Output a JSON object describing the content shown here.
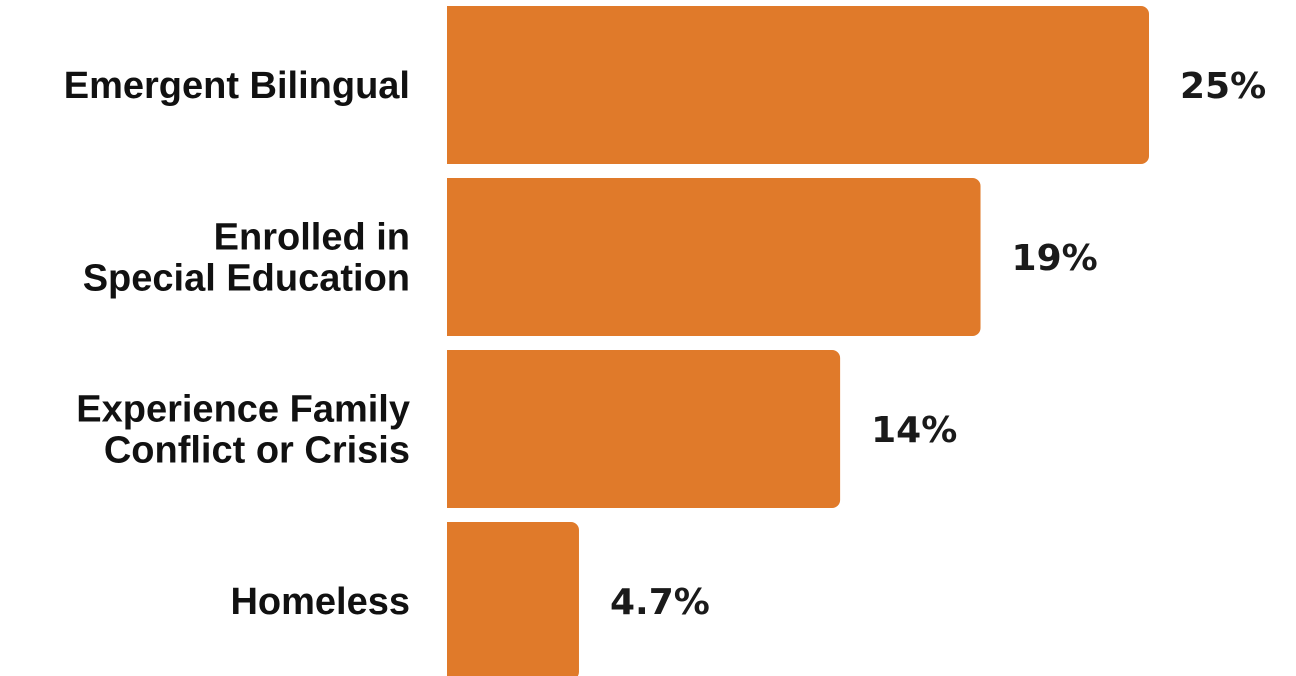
{
  "chart_data": {
    "type": "bar",
    "orientation": "horizontal",
    "categories": [
      [
        "Emergent Bilingual"
      ],
      [
        "Enrolled in",
        "Special Education"
      ],
      [
        "Experience Family",
        "Conflict or Crisis"
      ],
      [
        "Homeless"
      ]
    ],
    "values": [
      25,
      19,
      14,
      4.7
    ],
    "value_labels": [
      "25%",
      "19%",
      "14%",
      "4.7%"
    ],
    "unit": "%",
    "xlim": [
      0,
      25
    ],
    "grid": false,
    "legend": "none",
    "title": "",
    "xlabel": "",
    "ylabel": ""
  },
  "colors": {
    "bar": "#E07A2A",
    "label_text": "#111111",
    "background": "#FFFFFF"
  }
}
